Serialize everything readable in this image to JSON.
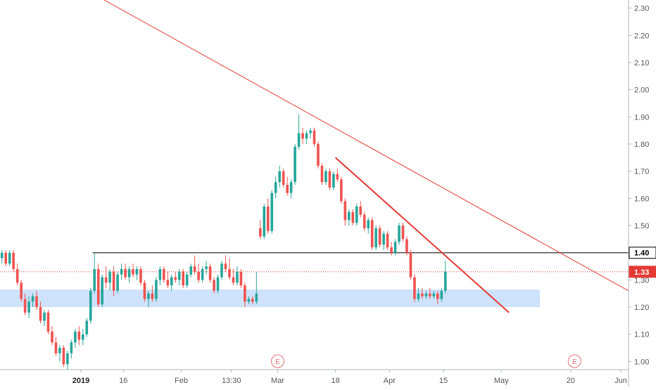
{
  "colors": {
    "up": "#26a69a",
    "down": "#ef5350",
    "trendline": "#e53935",
    "support_zone": "#cfe2fb",
    "level_line": "#000000",
    "price_line": "#e53935",
    "axis_text": "#555555",
    "event_marker": "#e57373"
  },
  "chart_data": {
    "type": "candlestick",
    "y_axis": {
      "ticks": [
        "1.00",
        "1.10",
        "1.20",
        "1.30",
        "1.40",
        "1.50",
        "1.60",
        "1.70",
        "1.80",
        "1.90",
        "2.00",
        "2.10",
        "2.20",
        "2.30"
      ],
      "range": [
        0.97,
        2.33
      ]
    },
    "x_axis": {
      "ticks": [
        {
          "label": "2019",
          "bold": true,
          "t": 21
        },
        {
          "label": "16",
          "t": 32
        },
        {
          "label": "Feb",
          "t": 47
        },
        {
          "label": "13:30",
          "t": 60
        },
        {
          "label": "Mar",
          "t": 72
        },
        {
          "label": "18",
          "t": 87
        },
        {
          "label": "Apr",
          "t": 101
        },
        {
          "label": "15",
          "t": 115
        },
        {
          "label": "May",
          "t": 130
        },
        {
          "label": "20",
          "t": 148
        },
        {
          "label": "Jun",
          "t": 161
        }
      ],
      "range": [
        0,
        163
      ]
    },
    "level_badges": [
      {
        "label": "1.40",
        "value": 1.4,
        "kind": "level"
      },
      {
        "label": "1.33",
        "value": 1.33,
        "kind": "price"
      }
    ],
    "event_markers": [
      {
        "label": "E",
        "t": 72
      },
      {
        "label": "E",
        "t": 149
      }
    ],
    "support_zone": {
      "from": 1.2,
      "to": 1.265,
      "t_start": 0,
      "t_end": 140
    },
    "horizontal_level": {
      "value": 1.4,
      "t_start": 24,
      "t_end": 163
    },
    "price_line": {
      "value": 1.33
    },
    "trendlines": [
      {
        "name": "long",
        "points": [
          [
            27,
            2.33
          ],
          [
            163,
            1.26
          ]
        ],
        "width": 1
      },
      {
        "name": "short",
        "points": [
          [
            87,
            1.75
          ],
          [
            132,
            1.18
          ]
        ],
        "width": 2
      }
    ],
    "candles": [
      {
        "o": 1.38,
        "h": 1.41,
        "l": 1.36,
        "c": 1.4
      },
      {
        "o": 1.4,
        "h": 1.41,
        "l": 1.35,
        "c": 1.36
      },
      {
        "o": 1.36,
        "h": 1.41,
        "l": 1.35,
        "c": 1.4
      },
      {
        "o": 1.4,
        "h": 1.41,
        "l": 1.33,
        "c": 1.34
      },
      {
        "o": 1.34,
        "h": 1.36,
        "l": 1.28,
        "c": 1.29
      },
      {
        "o": 1.29,
        "h": 1.3,
        "l": 1.22,
        "c": 1.23
      },
      {
        "o": 1.23,
        "h": 1.25,
        "l": 1.17,
        "c": 1.18
      },
      {
        "o": 1.18,
        "h": 1.24,
        "l": 1.16,
        "c": 1.22
      },
      {
        "o": 1.22,
        "h": 1.25,
        "l": 1.2,
        "c": 1.24
      },
      {
        "o": 1.24,
        "h": 1.26,
        "l": 1.19,
        "c": 1.2
      },
      {
        "o": 1.2,
        "h": 1.22,
        "l": 1.14,
        "c": 1.15
      },
      {
        "o": 1.15,
        "h": 1.19,
        "l": 1.13,
        "c": 1.18
      },
      {
        "o": 1.18,
        "h": 1.19,
        "l": 1.1,
        "c": 1.11
      },
      {
        "o": 1.11,
        "h": 1.13,
        "l": 1.06,
        "c": 1.07
      },
      {
        "o": 1.07,
        "h": 1.09,
        "l": 1.02,
        "c": 1.03
      },
      {
        "o": 1.03,
        "h": 1.06,
        "l": 1.0,
        "c": 1.05
      },
      {
        "o": 1.05,
        "h": 1.06,
        "l": 0.98,
        "c": 0.99
      },
      {
        "o": 0.99,
        "h": 1.04,
        "l": 0.97,
        "c": 1.03
      },
      {
        "o": 1.03,
        "h": 1.08,
        "l": 1.01,
        "c": 1.07
      },
      {
        "o": 1.07,
        "h": 1.12,
        "l": 1.05,
        "c": 1.11
      },
      {
        "o": 1.11,
        "h": 1.13,
        "l": 1.06,
        "c": 1.08
      },
      {
        "o": 1.08,
        "h": 1.12,
        "l": 1.06,
        "c": 1.1
      },
      {
        "o": 1.1,
        "h": 1.16,
        "l": 1.09,
        "c": 1.15
      },
      {
        "o": 1.15,
        "h": 1.27,
        "l": 1.14,
        "c": 1.26
      },
      {
        "o": 1.26,
        "h": 1.4,
        "l": 1.25,
        "c": 1.34
      },
      {
        "o": 1.34,
        "h": 1.36,
        "l": 1.2,
        "c": 1.21
      },
      {
        "o": 1.21,
        "h": 1.32,
        "l": 1.2,
        "c": 1.31
      },
      {
        "o": 1.31,
        "h": 1.35,
        "l": 1.27,
        "c": 1.29
      },
      {
        "o": 1.29,
        "h": 1.34,
        "l": 1.26,
        "c": 1.33
      },
      {
        "o": 1.33,
        "h": 1.35,
        "l": 1.24,
        "c": 1.26
      },
      {
        "o": 1.26,
        "h": 1.33,
        "l": 1.25,
        "c": 1.32
      },
      {
        "o": 1.32,
        "h": 1.36,
        "l": 1.3,
        "c": 1.34
      },
      {
        "o": 1.34,
        "h": 1.36,
        "l": 1.3,
        "c": 1.31
      },
      {
        "o": 1.31,
        "h": 1.35,
        "l": 1.29,
        "c": 1.34
      },
      {
        "o": 1.34,
        "h": 1.36,
        "l": 1.31,
        "c": 1.32
      },
      {
        "o": 1.32,
        "h": 1.35,
        "l": 1.3,
        "c": 1.34
      },
      {
        "o": 1.34,
        "h": 1.35,
        "l": 1.28,
        "c": 1.29
      },
      {
        "o": 1.29,
        "h": 1.3,
        "l": 1.22,
        "c": 1.23
      },
      {
        "o": 1.23,
        "h": 1.26,
        "l": 1.2,
        "c": 1.25
      },
      {
        "o": 1.25,
        "h": 1.28,
        "l": 1.22,
        "c": 1.23
      },
      {
        "o": 1.23,
        "h": 1.31,
        "l": 1.22,
        "c": 1.3
      },
      {
        "o": 1.3,
        "h": 1.35,
        "l": 1.28,
        "c": 1.34
      },
      {
        "o": 1.34,
        "h": 1.35,
        "l": 1.29,
        "c": 1.3
      },
      {
        "o": 1.3,
        "h": 1.33,
        "l": 1.27,
        "c": 1.28
      },
      {
        "o": 1.28,
        "h": 1.32,
        "l": 1.26,
        "c": 1.31
      },
      {
        "o": 1.31,
        "h": 1.33,
        "l": 1.29,
        "c": 1.3
      },
      {
        "o": 1.3,
        "h": 1.34,
        "l": 1.28,
        "c": 1.33
      },
      {
        "o": 1.33,
        "h": 1.34,
        "l": 1.27,
        "c": 1.28
      },
      {
        "o": 1.28,
        "h": 1.33,
        "l": 1.27,
        "c": 1.32
      },
      {
        "o": 1.32,
        "h": 1.36,
        "l": 1.31,
        "c": 1.35
      },
      {
        "o": 1.35,
        "h": 1.39,
        "l": 1.32,
        "c": 1.33
      },
      {
        "o": 1.33,
        "h": 1.36,
        "l": 1.29,
        "c": 1.3
      },
      {
        "o": 1.3,
        "h": 1.35,
        "l": 1.29,
        "c": 1.34
      },
      {
        "o": 1.34,
        "h": 1.37,
        "l": 1.32,
        "c": 1.35
      },
      {
        "o": 1.35,
        "h": 1.36,
        "l": 1.29,
        "c": 1.3
      },
      {
        "o": 1.3,
        "h": 1.31,
        "l": 1.25,
        "c": 1.26
      },
      {
        "o": 1.26,
        "h": 1.32,
        "l": 1.25,
        "c": 1.31
      },
      {
        "o": 1.31,
        "h": 1.37,
        "l": 1.3,
        "c": 1.36
      },
      {
        "o": 1.36,
        "h": 1.39,
        "l": 1.33,
        "c": 1.34
      },
      {
        "o": 1.34,
        "h": 1.38,
        "l": 1.3,
        "c": 1.31
      },
      {
        "o": 1.31,
        "h": 1.34,
        "l": 1.28,
        "c": 1.29
      },
      {
        "o": 1.29,
        "h": 1.35,
        "l": 1.28,
        "c": 1.33
      },
      {
        "o": 1.33,
        "h": 1.34,
        "l": 1.27,
        "c": 1.28
      },
      {
        "o": 1.28,
        "h": 1.29,
        "l": 1.2,
        "c": 1.22
      },
      {
        "o": 1.22,
        "h": 1.24,
        "l": 1.21,
        "c": 1.23
      },
      {
        "o": 1.23,
        "h": 1.24,
        "l": 1.21,
        "c": 1.22
      },
      {
        "o": 1.22,
        "h": 1.33,
        "l": 1.21,
        "c": 1.25
      },
      {
        "o": 1.49,
        "h": 1.52,
        "l": 1.45,
        "c": 1.46
      },
      {
        "o": 1.46,
        "h": 1.58,
        "l": 1.45,
        "c": 1.57
      },
      {
        "o": 1.57,
        "h": 1.6,
        "l": 1.47,
        "c": 1.48
      },
      {
        "o": 1.48,
        "h": 1.63,
        "l": 1.47,
        "c": 1.62
      },
      {
        "o": 1.62,
        "h": 1.68,
        "l": 1.6,
        "c": 1.66
      },
      {
        "o": 1.66,
        "h": 1.72,
        "l": 1.64,
        "c": 1.7
      },
      {
        "o": 1.7,
        "h": 1.71,
        "l": 1.64,
        "c": 1.65
      },
      {
        "o": 1.65,
        "h": 1.68,
        "l": 1.61,
        "c": 1.62
      },
      {
        "o": 1.62,
        "h": 1.67,
        "l": 1.6,
        "c": 1.66
      },
      {
        "o": 1.66,
        "h": 1.8,
        "l": 1.65,
        "c": 1.79
      },
      {
        "o": 1.79,
        "h": 1.91,
        "l": 1.78,
        "c": 1.84
      },
      {
        "o": 1.84,
        "h": 1.86,
        "l": 1.8,
        "c": 1.82
      },
      {
        "o": 1.82,
        "h": 1.85,
        "l": 1.8,
        "c": 1.84
      },
      {
        "o": 1.84,
        "h": 1.86,
        "l": 1.82,
        "c": 1.85
      },
      {
        "o": 1.85,
        "h": 1.86,
        "l": 1.79,
        "c": 1.8
      },
      {
        "o": 1.8,
        "h": 1.81,
        "l": 1.71,
        "c": 1.72
      },
      {
        "o": 1.72,
        "h": 1.73,
        "l": 1.65,
        "c": 1.66
      },
      {
        "o": 1.66,
        "h": 1.71,
        "l": 1.65,
        "c": 1.7
      },
      {
        "o": 1.7,
        "h": 1.71,
        "l": 1.63,
        "c": 1.64
      },
      {
        "o": 1.64,
        "h": 1.7,
        "l": 1.63,
        "c": 1.69
      },
      {
        "o": 1.69,
        "h": 1.71,
        "l": 1.66,
        "c": 1.67
      },
      {
        "o": 1.67,
        "h": 1.68,
        "l": 1.58,
        "c": 1.59
      },
      {
        "o": 1.59,
        "h": 1.6,
        "l": 1.5,
        "c": 1.52
      },
      {
        "o": 1.52,
        "h": 1.56,
        "l": 1.5,
        "c": 1.55
      },
      {
        "o": 1.55,
        "h": 1.56,
        "l": 1.5,
        "c": 1.51
      },
      {
        "o": 1.51,
        "h": 1.58,
        "l": 1.5,
        "c": 1.57
      },
      {
        "o": 1.57,
        "h": 1.59,
        "l": 1.53,
        "c": 1.54
      },
      {
        "o": 1.54,
        "h": 1.55,
        "l": 1.48,
        "c": 1.49
      },
      {
        "o": 1.49,
        "h": 1.53,
        "l": 1.47,
        "c": 1.52
      },
      {
        "o": 1.52,
        "h": 1.53,
        "l": 1.41,
        "c": 1.42
      },
      {
        "o": 1.42,
        "h": 1.5,
        "l": 1.41,
        "c": 1.49
      },
      {
        "o": 1.49,
        "h": 1.5,
        "l": 1.42,
        "c": 1.43
      },
      {
        "o": 1.43,
        "h": 1.48,
        "l": 1.41,
        "c": 1.47
      },
      {
        "o": 1.47,
        "h": 1.48,
        "l": 1.41,
        "c": 1.42
      },
      {
        "o": 1.42,
        "h": 1.44,
        "l": 1.39,
        "c": 1.4
      },
      {
        "o": 1.4,
        "h": 1.45,
        "l": 1.39,
        "c": 1.44
      },
      {
        "o": 1.44,
        "h": 1.51,
        "l": 1.43,
        "c": 1.5
      },
      {
        "o": 1.5,
        "h": 1.51,
        "l": 1.44,
        "c": 1.45
      },
      {
        "o": 1.45,
        "h": 1.46,
        "l": 1.39,
        "c": 1.4
      },
      {
        "o": 1.4,
        "h": 1.41,
        "l": 1.3,
        "c": 1.31
      },
      {
        "o": 1.31,
        "h": 1.32,
        "l": 1.22,
        "c": 1.23
      },
      {
        "o": 1.23,
        "h": 1.27,
        "l": 1.22,
        "c": 1.25
      },
      {
        "o": 1.25,
        "h": 1.27,
        "l": 1.23,
        "c": 1.24
      },
      {
        "o": 1.24,
        "h": 1.26,
        "l": 1.23,
        "c": 1.25
      },
      {
        "o": 1.25,
        "h": 1.27,
        "l": 1.23,
        "c": 1.24
      },
      {
        "o": 1.24,
        "h": 1.26,
        "l": 1.23,
        "c": 1.25
      },
      {
        "o": 1.25,
        "h": 1.26,
        "l": 1.21,
        "c": 1.23
      },
      {
        "o": 1.23,
        "h": 1.27,
        "l": 1.22,
        "c": 1.26
      },
      {
        "o": 1.26,
        "h": 1.37,
        "l": 1.25,
        "c": 1.33
      }
    ]
  }
}
